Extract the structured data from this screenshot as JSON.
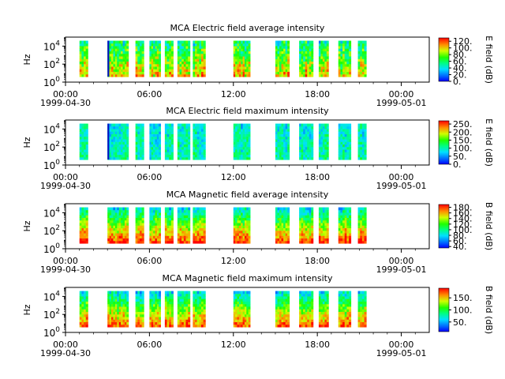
{
  "figure": {
    "panels": [
      {
        "title": "MCA  Electric field average intensity",
        "ylabel": "Hz",
        "cbar_label": "E field (dB)",
        "cbar_ticks": [
          "0.",
          "20.",
          "40.",
          "60.",
          "80.",
          "100.",
          "120."
        ],
        "cbar_range": [
          0,
          130
        ],
        "ytick_labels": [
          {
            "base": "10",
            "exp": "0"
          },
          {
            "base": "10",
            "exp": "2"
          },
          {
            "base": "10",
            "exp": "4"
          }
        ]
      },
      {
        "title": "MCA  Electric field maximum intensity",
        "ylabel": "Hz",
        "cbar_label": "E field (dB)",
        "cbar_ticks": [
          "0.",
          "50.",
          "100.",
          "150.",
          "200.",
          "250."
        ],
        "cbar_range": [
          0,
          270
        ],
        "ytick_labels": [
          {
            "base": "10",
            "exp": "0"
          },
          {
            "base": "10",
            "exp": "2"
          },
          {
            "base": "10",
            "exp": "4"
          }
        ]
      },
      {
        "title": "MCA  Magnetic field average intensity",
        "ylabel": "Hz",
        "cbar_label": "B field (dB)",
        "cbar_ticks": [
          "40.",
          "60.",
          "80.",
          "100.",
          "120.",
          "140.",
          "160.",
          "180."
        ],
        "cbar_range": [
          35,
          190
        ],
        "ytick_labels": [
          {
            "base": "10",
            "exp": "0"
          },
          {
            "base": "10",
            "exp": "2"
          },
          {
            "base": "10",
            "exp": "4"
          }
        ]
      },
      {
        "title": "MCA  Magnetic field maximum intensity",
        "ylabel": "Hz",
        "cbar_label": "B field (dB)",
        "cbar_ticks": [
          "50.",
          "100.",
          "150."
        ],
        "cbar_range": [
          10,
          190
        ],
        "ytick_labels": [
          {
            "base": "10",
            "exp": "0"
          },
          {
            "base": "10",
            "exp": "2"
          },
          {
            "base": "10",
            "exp": "4"
          }
        ]
      }
    ],
    "xticks": [
      {
        "time": "00:00",
        "date": "1999-04-30"
      },
      {
        "time": "06:00",
        "date": ""
      },
      {
        "time": "12:00",
        "date": ""
      },
      {
        "time": "18:00",
        "date": ""
      },
      {
        "time": "00:00",
        "date": "1999-05-01"
      }
    ]
  },
  "chart_data": [
    {
      "type": "heatmap",
      "title": "MCA  Electric field average intensity",
      "x_range": [
        "1999-04-30 00:00",
        "1999-05-01 02:00"
      ],
      "y_range_hz": [
        1,
        100000
      ],
      "y_scale": "log",
      "z_label": "E field (dB)",
      "z_range": [
        0,
        130
      ],
      "data_intervals_hours": [
        [
          1.0,
          1.6
        ],
        [
          3.0,
          4.5
        ],
        [
          5.0,
          5.6
        ],
        [
          6.0,
          6.8
        ],
        [
          7.1,
          7.7
        ],
        [
          8.0,
          8.9
        ],
        [
          9.1,
          10.0
        ],
        [
          12.0,
          13.2
        ],
        [
          15.0,
          16.0
        ],
        [
          16.7,
          17.7
        ],
        [
          18.1,
          18.8
        ],
        [
          19.5,
          20.4
        ],
        [
          20.9,
          21.5
        ]
      ],
      "colormap": "rainbow"
    },
    {
      "type": "heatmap",
      "title": "MCA  Electric field maximum intensity",
      "x_range": [
        "1999-04-30 00:00",
        "1999-05-01 02:00"
      ],
      "y_range_hz": [
        1,
        100000
      ],
      "y_scale": "log",
      "z_label": "E field (dB)",
      "z_range": [
        0,
        270
      ],
      "data_intervals_hours": [
        [
          1.0,
          1.6
        ],
        [
          3.0,
          4.5
        ],
        [
          5.0,
          5.6
        ],
        [
          6.0,
          6.8
        ],
        [
          7.1,
          7.7
        ],
        [
          8.0,
          8.9
        ],
        [
          9.1,
          10.0
        ],
        [
          12.0,
          13.2
        ],
        [
          15.0,
          16.0
        ],
        [
          16.7,
          17.7
        ],
        [
          18.1,
          18.8
        ],
        [
          19.5,
          20.4
        ],
        [
          20.9,
          21.5
        ]
      ],
      "colormap": "rainbow"
    },
    {
      "type": "heatmap",
      "title": "MCA  Magnetic field average intensity",
      "x_range": [
        "1999-04-30 00:00",
        "1999-05-01 02:00"
      ],
      "y_range_hz": [
        1,
        100000
      ],
      "y_scale": "log",
      "z_label": "B field (dB)",
      "z_range": [
        35,
        190
      ],
      "data_intervals_hours": [
        [
          1.0,
          1.6
        ],
        [
          3.0,
          4.5
        ],
        [
          5.0,
          5.6
        ],
        [
          6.0,
          6.8
        ],
        [
          7.1,
          7.7
        ],
        [
          8.0,
          8.9
        ],
        [
          9.1,
          10.0
        ],
        [
          12.0,
          13.2
        ],
        [
          15.0,
          16.0
        ],
        [
          16.7,
          17.7
        ],
        [
          18.1,
          18.8
        ],
        [
          19.5,
          20.4
        ],
        [
          20.9,
          21.5
        ]
      ],
      "colormap": "rainbow"
    },
    {
      "type": "heatmap",
      "title": "MCA  Magnetic field maximum intensity",
      "x_range": [
        "1999-04-30 00:00",
        "1999-05-01 02:00"
      ],
      "y_range_hz": [
        1,
        100000
      ],
      "y_scale": "log",
      "z_label": "B field (dB)",
      "z_range": [
        10,
        190
      ],
      "data_intervals_hours": [
        [
          1.0,
          1.6
        ],
        [
          3.0,
          4.5
        ],
        [
          5.0,
          5.6
        ],
        [
          6.0,
          6.8
        ],
        [
          7.1,
          7.7
        ],
        [
          8.0,
          8.9
        ],
        [
          9.1,
          10.0
        ],
        [
          12.0,
          13.2
        ],
        [
          15.0,
          16.0
        ],
        [
          16.7,
          17.7
        ],
        [
          18.1,
          18.8
        ],
        [
          19.5,
          20.4
        ],
        [
          20.9,
          21.5
        ]
      ],
      "colormap": "rainbow"
    }
  ]
}
